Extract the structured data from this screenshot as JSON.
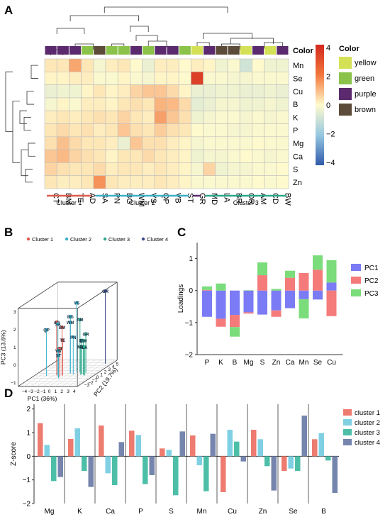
{
  "panels": {
    "A": "A",
    "B": "B",
    "C": "C",
    "D": "D"
  },
  "heatmap": {
    "columns": [
      "CT",
      "BM",
      "TE",
      "AD",
      "SA",
      "PN",
      "BG",
      "WM",
      "VS",
      "QP",
      "VB",
      "ST",
      "GR",
      "MD",
      "LA",
      "BR",
      "OR",
      "AM",
      "CD",
      "BW"
    ],
    "rows": [
      "Mn",
      "Se",
      "Cu",
      "B",
      "K",
      "P",
      "Mg",
      "Ca",
      "S",
      "Zn"
    ],
    "color_header": "Color",
    "col_colors": [
      "purple",
      "purple",
      "purple",
      "green",
      "brown",
      "green",
      "green",
      "purple",
      "green",
      "purple",
      "purple",
      "green",
      "yellow",
      "purple",
      "brown",
      "brown",
      "yellow",
      "purple",
      "yellow",
      "purple"
    ],
    "palette": {
      "yellow": "#d4e157",
      "green": "#8bc34a",
      "purple": "#5b2a6e",
      "brown": "#5d4b3a"
    },
    "legend_title": "Color",
    "legend_items": [
      "yellow",
      "green",
      "purple",
      "brown"
    ],
    "colorbar_ticks": [
      "4",
      "2",
      "0",
      "−2",
      "−4"
    ],
    "colorbar_range": [
      -4,
      4
    ],
    "clusters": [
      {
        "name": "Cluster 1",
        "color": "#e05a50"
      },
      {
        "name": "Cluster 2",
        "color": "#3ab0c8"
      },
      {
        "name": "",
        "color": "#5b2a6e"
      },
      {
        "name": "Cluster 3",
        "color": "#2aa88a"
      }
    ],
    "values": [
      [
        0.3,
        0.3,
        1.3,
        0.3,
        -0.2,
        0.2,
        0.3,
        0.0,
        -0.4,
        0.2,
        0.2,
        0.0,
        0.2,
        0.1,
        -0.3,
        -0.1,
        -0.9,
        0.0,
        -0.3,
        -0.3
      ],
      [
        0.1,
        0.1,
        0.2,
        0.2,
        -0.1,
        -0.1,
        0.1,
        -0.1,
        -0.2,
        0.1,
        0.1,
        0.0,
        3.4,
        -0.1,
        -0.1,
        -0.2,
        -0.2,
        -0.1,
        -0.1,
        -0.1
      ],
      [
        -0.4,
        -0.3,
        -0.3,
        0.1,
        0.3,
        0.1,
        0.2,
        0.6,
        0.8,
        0.8,
        0.5,
        0.1,
        -0.4,
        -0.4,
        -0.3,
        -0.3,
        -0.4,
        -0.4,
        -0.3,
        -0.4
      ],
      [
        -0.2,
        0.1,
        -0.1,
        0.2,
        0.2,
        0.1,
        0.3,
        0.4,
        0.3,
        1.1,
        1.0,
        0.5,
        -0.5,
        -0.4,
        -0.2,
        -0.2,
        -0.3,
        -0.3,
        -0.2,
        -0.3
      ],
      [
        0.2,
        0.3,
        0.2,
        0.3,
        0.4,
        0.3,
        0.6,
        0.3,
        0.2,
        1.4,
        0.8,
        0.4,
        -0.3,
        -0.2,
        -0.1,
        -0.1,
        -0.2,
        -0.1,
        -0.2,
        -0.1
      ],
      [
        0.3,
        0.5,
        0.3,
        0.4,
        0.2,
        0.3,
        0.8,
        0.4,
        0.3,
        0.7,
        0.4,
        0.3,
        0.0,
        -0.1,
        -0.1,
        -0.2,
        -0.2,
        -0.1,
        -0.1,
        -0.1
      ],
      [
        0.4,
        0.9,
        0.5,
        0.3,
        0.3,
        0.2,
        -0.4,
        0.8,
        0.4,
        0.4,
        0.2,
        0.1,
        -0.2,
        -0.1,
        -0.1,
        -0.1,
        -0.1,
        0.0,
        -0.1,
        -0.1
      ],
      [
        0.8,
        1.0,
        0.6,
        0.4,
        0.3,
        0.1,
        0.3,
        0.3,
        0.5,
        0.3,
        0.2,
        0.1,
        -0.3,
        -0.2,
        -0.2,
        -0.1,
        0.0,
        -0.1,
        -0.2,
        -0.1
      ],
      [
        0.6,
        0.4,
        0.3,
        0.3,
        0.5,
        0.2,
        0.3,
        0.3,
        0.2,
        0.3,
        0.2,
        0.1,
        -0.2,
        0.6,
        -0.3,
        -0.2,
        -0.2,
        -0.1,
        -0.1,
        0.0
      ],
      [
        0.3,
        0.2,
        0.2,
        0.3,
        1.6,
        0.3,
        0.2,
        0.2,
        0.2,
        0.3,
        0.2,
        0.1,
        -0.1,
        -0.1,
        -0.1,
        -0.1,
        -0.1,
        0.0,
        -0.1,
        0.0
      ]
    ]
  },
  "pca3d": {
    "legend": [
      {
        "name": "Cluster 1",
        "color": "#e05a50"
      },
      {
        "name": "Cluster 2",
        "color": "#3ab0c8"
      },
      {
        "name": "Cluster 3",
        "color": "#2aa88a"
      },
      {
        "name": "Cluster 4",
        "color": "#3c4b8a"
      }
    ],
    "xlabel": "PC1 (36%)",
    "ylabel": "PC2 (19.7%)",
    "zlabel": "PC3 (13.6%)",
    "x_ticks": [
      "−4",
      "−3",
      "−2",
      "−1",
      "0",
      "1",
      "2",
      "3",
      "4"
    ],
    "y_ticks": [
      "−3",
      "−2",
      "−1",
      "0",
      "1",
      "2",
      "3",
      "4",
      "5"
    ],
    "z_ticks": [
      "3",
      "2",
      "1",
      "0",
      "−1"
    ],
    "points": [
      {
        "label": "GR",
        "cluster": 3,
        "x": 3.5,
        "y": 4.6,
        "z": 2.9
      },
      {
        "label": "VS",
        "cluster": 1,
        "x": 0.9,
        "y": 1.5,
        "z": 2.7
      },
      {
        "label": "BG",
        "cluster": 1,
        "x": 0.2,
        "y": 1.0,
        "z": 2.0
      },
      {
        "label": "WM",
        "cluster": 1,
        "x": 0.3,
        "y": 0.8,
        "z": 1.7
      },
      {
        "label": "AM",
        "cluster": 2,
        "x": 1.6,
        "y": 1.2,
        "z": 1.8
      },
      {
        "label": "AD",
        "cluster": 0,
        "x": -1.5,
        "y": 0.2,
        "z": 1.8
      },
      {
        "label": "SA",
        "cluster": 1,
        "x": -1.3,
        "y": 0.2,
        "z": 1.7
      },
      {
        "label": "QP",
        "cluster": 1,
        "x": -3.0,
        "y": 0.0,
        "z": 1.4
      },
      {
        "label": "BM",
        "cluster": 0,
        "x": -0.7,
        "y": 0.3,
        "z": 1.5
      },
      {
        "label": "TE",
        "cluster": 0,
        "x": -0.5,
        "y": 0.1,
        "z": 0.8
      },
      {
        "label": "PN",
        "cluster": 1,
        "x": 0.9,
        "y": 0.6,
        "z": 0.9
      },
      {
        "label": "CT",
        "cluster": 0,
        "x": -0.6,
        "y": -0.4,
        "z": 0.4
      },
      {
        "label": "VB",
        "cluster": 1,
        "x": -0.8,
        "y": -0.5,
        "z": 0.3
      },
      {
        "label": "ST",
        "cluster": 1,
        "x": -0.5,
        "y": -0.9,
        "z": 0.1
      },
      {
        "label": "GR",
        "cluster": 2,
        "x": 2.6,
        "y": 1.1,
        "z": 1.0
      },
      {
        "label": "CD",
        "cluster": 2,
        "x": 2.2,
        "y": 0.7,
        "z": 0.7
      },
      {
        "label": "BW",
        "cluster": 2,
        "x": 2.6,
        "y": 0.5,
        "z": 0.7
      },
      {
        "label": "MD",
        "cluster": 2,
        "x": 2.3,
        "y": 0.3,
        "z": 0.4
      },
      {
        "label": "BR",
        "cluster": 2,
        "x": 2.7,
        "y": 0.3,
        "z": 0.4
      },
      {
        "label": "LA",
        "cluster": 2,
        "x": 3.0,
        "y": 0.2,
        "z": 0.4
      }
    ]
  },
  "chart_data": [
    {
      "type": "heatmap",
      "title": "",
      "x": [
        "CT",
        "BM",
        "TE",
        "AD",
        "SA",
        "PN",
        "BG",
        "WM",
        "VS",
        "QP",
        "VB",
        "ST",
        "GR",
        "MD",
        "LA",
        "BR",
        "OR",
        "AM",
        "CD",
        "BW"
      ],
      "y": [
        "Mn",
        "Se",
        "Cu",
        "B",
        "K",
        "P",
        "Mg",
        "Ca",
        "S",
        "Zn"
      ],
      "scale": [
        -4,
        4
      ]
    },
    {
      "type": "bar",
      "title": "",
      "categories": [
        "P",
        "K",
        "B",
        "Mg",
        "S",
        "Zn",
        "Ca",
        "Mn",
        "Se",
        "Cu"
      ],
      "ylabel": "Loadings",
      "ylim": [
        -2,
        1.5
      ],
      "y_ticks": [
        "1",
        "0",
        "−1",
        "−2"
      ],
      "stacked": true,
      "legend_position": "top-right",
      "series": [
        {
          "name": "PC1",
          "color": "#7b7bf5",
          "values": [
            -0.82,
            -0.88,
            -0.76,
            -0.68,
            -0.75,
            -0.62,
            -0.55,
            -0.27,
            -0.28,
            0.25
          ]
        },
        {
          "name": "PC2",
          "color": "#f57b7b",
          "values": [
            0.02,
            -0.25,
            -0.38,
            -0.04,
            0.48,
            -0.2,
            0.4,
            0.55,
            0.65,
            -0.8
          ]
        },
        {
          "name": "PC3",
          "color": "#7bdc7b",
          "values": [
            0.11,
            0.22,
            -0.3,
            0.01,
            0.4,
            0.05,
            0.22,
            -0.6,
            0.45,
            0.7
          ]
        }
      ]
    },
    {
      "type": "bar",
      "title": "",
      "categories": [
        "Mg",
        "K",
        "Ca",
        "P",
        "S",
        "Mn",
        "Cu",
        "Zn",
        "Se",
        "B"
      ],
      "ylabel": "Z-score",
      "ylim": [
        -2,
        2.2
      ],
      "y_ticks": [
        "2",
        "1",
        "0",
        "−1",
        "−2"
      ],
      "legend_position": "top-right",
      "series": [
        {
          "name": "cluster 1",
          "color": "#ee7b6f",
          "values": [
            1.4,
            0.73,
            1.3,
            1.08,
            0.33,
            0.88,
            -1.52,
            1.12,
            -0.62,
            0.72
          ]
        },
        {
          "name": "cluster 2",
          "color": "#7fd0e3",
          "values": [
            0.48,
            1.18,
            -0.72,
            0.9,
            0.27,
            -0.38,
            1.12,
            0.72,
            -0.52,
            0.98
          ]
        },
        {
          "name": "cluster 3",
          "color": "#4dbfa8",
          "values": [
            -1.05,
            -0.62,
            -1.22,
            -1.18,
            -1.65,
            -1.48,
            0.62,
            -0.42,
            -0.62,
            -0.18
          ]
        },
        {
          "name": "cluster 4",
          "color": "#7585ad",
          "values": [
            -0.88,
            -1.3,
            0.6,
            -0.8,
            1.05,
            0.95,
            -0.22,
            -1.45,
            1.72,
            -1.55
          ]
        }
      ]
    }
  ]
}
